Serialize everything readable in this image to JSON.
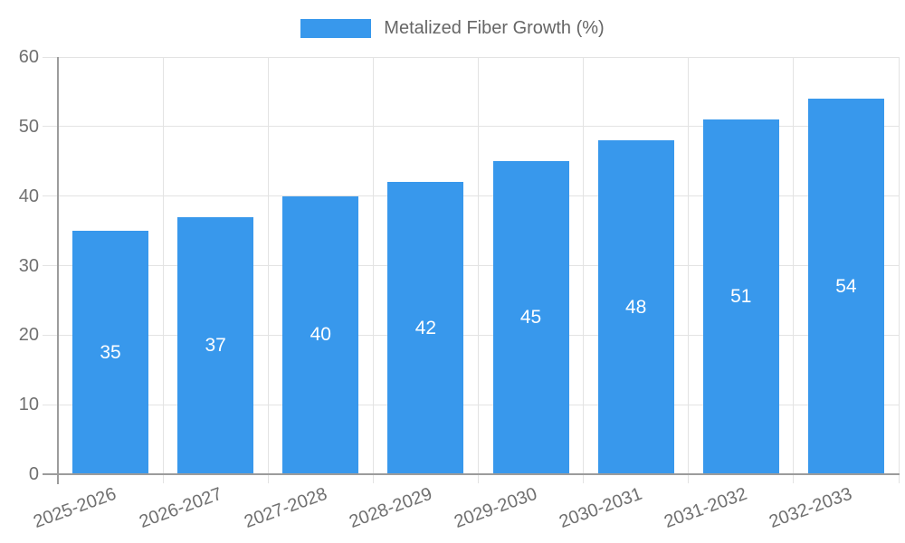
{
  "chart_data": {
    "type": "bar",
    "title": "",
    "legend_label": "Metalized Fiber Growth (%)",
    "legend_position": "top",
    "categories": [
      "2025-2026",
      "2026-2027",
      "2027-2028",
      "2028-2029",
      "2029-2030",
      "2030-2031",
      "2031-2032",
      "2032-2033"
    ],
    "values": [
      35,
      37,
      40,
      42,
      45,
      48,
      51,
      54
    ],
    "bar_value_labels": [
      "35",
      "37",
      "40",
      "42",
      "45",
      "48",
      "51",
      "54"
    ],
    "xlabel": "",
    "ylabel": "",
    "ylim": [
      0,
      60
    ],
    "yticks": [
      0,
      10,
      20,
      30,
      40,
      50,
      60
    ],
    "grid": true,
    "x_tick_rotation_deg": -20,
    "bar_color": "#3898ec",
    "bar_label_color": "#ffffff",
    "grid_color": "#e3e3e3",
    "axis_line_color": "#9c9c9c",
    "axis_text_color": "#707070",
    "legend_text_color": "#666666",
    "background_color": "#ffffff"
  }
}
